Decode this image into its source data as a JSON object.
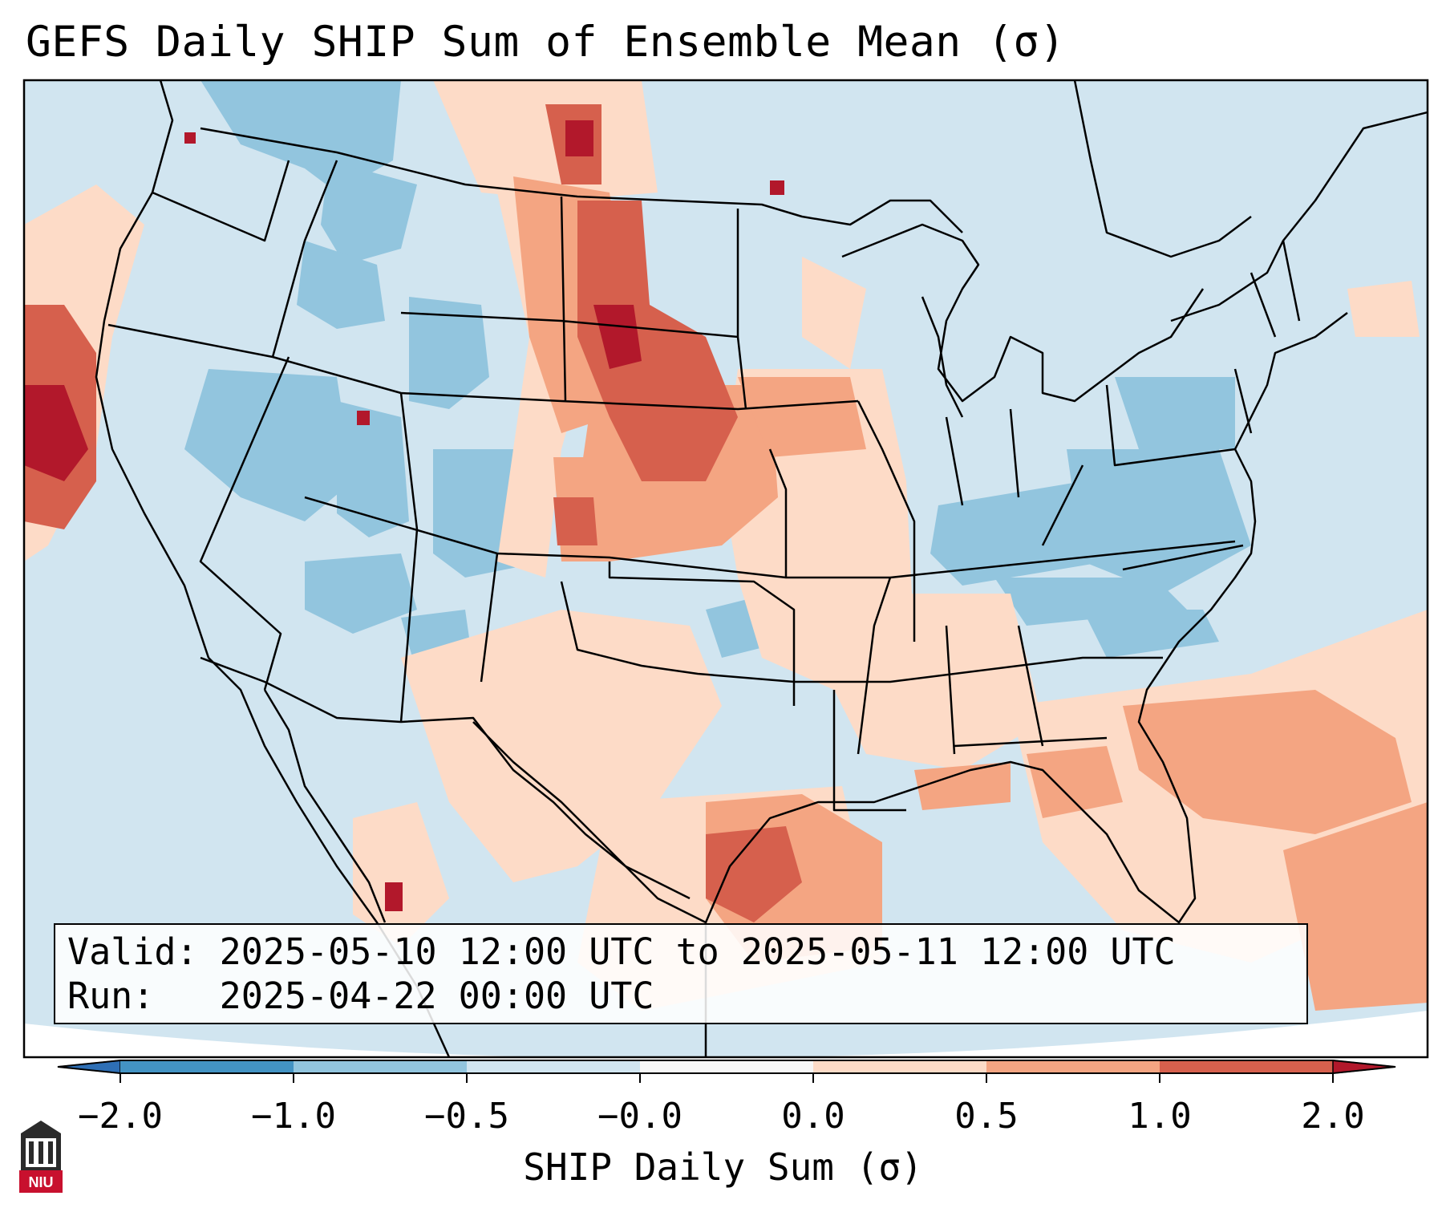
{
  "title": "GEFS Daily SHIP Sum of Ensemble Mean (σ)",
  "info_box": {
    "valid_line": "Valid: 2025-05-10 12:00 UTC to 2025-05-11 12:00 UTC",
    "run_line": "Run:   2025-04-22 00:00 UTC"
  },
  "colorbar": {
    "label": "SHIP Daily Sum (σ)",
    "tick_labels": [
      "−2.0",
      "−1.0",
      "−0.5",
      "−0.0",
      "0.0",
      "0.5",
      "1.0",
      "2.0"
    ],
    "extend": "both",
    "colors": {
      "under": "#2e6fb5",
      "neg_strong": "#4393c3",
      "neg_mod": "#92c5de",
      "neg_weak": "#d1e5f0",
      "neutral": "#f7f7f7",
      "pos_weak": "#fddbc7",
      "pos_mod": "#f4a582",
      "pos_strong": "#d6604d",
      "over": "#b2182b"
    }
  },
  "map": {
    "projection": "lambert-conformal",
    "region": "CONUS",
    "background_color": "#d1e5f0",
    "outline_color": "#000000"
  },
  "logo": {
    "text": "NIU",
    "icon": "university-building-icon"
  }
}
